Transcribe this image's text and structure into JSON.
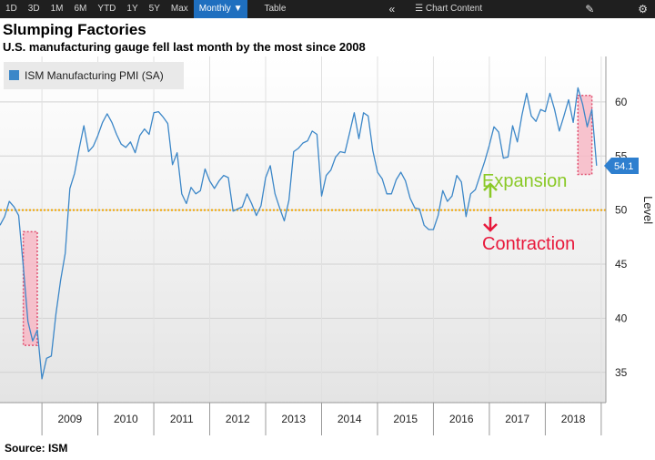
{
  "toolbar": {
    "ranges": [
      "1D",
      "3D",
      "1M",
      "6M",
      "YTD",
      "1Y",
      "5Y",
      "Max"
    ],
    "frequency": "Monthly ▼",
    "table_label": "Table",
    "collapse_icon": "double-chevron-left-icon",
    "chart_content_label": "Chart Content",
    "edit_icon": "edit-icon",
    "settings_icon": "gear-icon"
  },
  "title": "Slumping Factories",
  "subtitle": "U.S. manufacturing gauge fell last month by the most since 2008",
  "source": "Source: ISM",
  "colors": {
    "line": "#3c87c8",
    "threshold": "#f0a500",
    "expansion": "#8ac926",
    "contraction": "#e8193c",
    "highlight_fill": "#f7b8c6",
    "highlight_border": "#e05070",
    "plot_bg_top": "#ffffff",
    "plot_bg_bottom": "#e4e4e4",
    "last_value_bg": "#2e7fcf"
  },
  "chart_data": {
    "type": "line",
    "title": "Slumping Factories",
    "subtitle": "U.S. manufacturing gauge fell last month by the most since 2008",
    "ylabel": "Level",
    "ylim": [
      32.2,
      64.2
    ],
    "y_ticks": [
      35,
      40,
      45,
      50,
      55,
      60
    ],
    "xlim": [
      "2008-04",
      "2019-02"
    ],
    "x_ticks": [
      "2009",
      "2010",
      "2011",
      "2012",
      "2013",
      "2014",
      "2015",
      "2016",
      "2017",
      "2018"
    ],
    "grid": true,
    "legend": {
      "position": "top-left",
      "label": "ISM Manufacturing PMI (SA)"
    },
    "threshold": 50,
    "last_value_label": "54.1",
    "annotations": [
      "Expansion",
      "Contraction"
    ],
    "highlight_ranges": [
      {
        "x": [
          "2008-09",
          "2008-12"
        ],
        "y": [
          37.5,
          48
        ]
      },
      {
        "x": [
          "2018-08",
          "2018-11"
        ],
        "y": [
          53.3,
          60.6
        ]
      }
    ],
    "series": [
      {
        "name": "ISM Manufacturing PMI (SA)",
        "x": [
          "2008-04",
          "2008-05",
          "2008-06",
          "2008-07",
          "2008-08",
          "2008-09",
          "2008-10",
          "2008-11",
          "2008-12",
          "2009-01",
          "2009-02",
          "2009-03",
          "2009-04",
          "2009-05",
          "2009-06",
          "2009-07",
          "2009-08",
          "2009-09",
          "2009-10",
          "2009-11",
          "2009-12",
          "2010-01",
          "2010-02",
          "2010-03",
          "2010-04",
          "2010-05",
          "2010-06",
          "2010-07",
          "2010-08",
          "2010-09",
          "2010-10",
          "2010-11",
          "2010-12",
          "2011-01",
          "2011-02",
          "2011-03",
          "2011-04",
          "2011-05",
          "2011-06",
          "2011-07",
          "2011-08",
          "2011-09",
          "2011-10",
          "2011-11",
          "2011-12",
          "2012-01",
          "2012-02",
          "2012-03",
          "2012-04",
          "2012-05",
          "2012-06",
          "2012-07",
          "2012-08",
          "2012-09",
          "2012-10",
          "2012-11",
          "2012-12",
          "2013-01",
          "2013-02",
          "2013-03",
          "2013-04",
          "2013-05",
          "2013-06",
          "2013-07",
          "2013-08",
          "2013-09",
          "2013-10",
          "2013-11",
          "2013-12",
          "2014-01",
          "2014-02",
          "2014-03",
          "2014-04",
          "2014-05",
          "2014-06",
          "2014-07",
          "2014-08",
          "2014-09",
          "2014-10",
          "2014-11",
          "2014-12",
          "2015-01",
          "2015-02",
          "2015-03",
          "2015-04",
          "2015-05",
          "2015-06",
          "2015-07",
          "2015-08",
          "2015-09",
          "2015-10",
          "2015-11",
          "2015-12",
          "2016-01",
          "2016-02",
          "2016-03",
          "2016-04",
          "2016-05",
          "2016-06",
          "2016-07",
          "2016-08",
          "2016-09",
          "2016-10",
          "2016-11",
          "2016-12",
          "2017-01",
          "2017-02",
          "2017-03",
          "2017-04",
          "2017-05",
          "2017-06",
          "2017-07",
          "2017-08",
          "2017-09",
          "2017-10",
          "2017-11",
          "2017-12",
          "2018-01",
          "2018-02",
          "2018-03",
          "2018-04",
          "2018-05",
          "2018-06",
          "2018-07",
          "2018-08",
          "2018-09",
          "2018-10",
          "2018-11",
          "2018-12"
        ],
        "values": [
          48.6,
          49.4,
          50.8,
          50.3,
          49.5,
          44.8,
          39.7,
          37.9,
          38.9,
          34.4,
          36.3,
          36.5,
          40.4,
          43.5,
          46.0,
          52.0,
          53.4,
          55.7,
          57.8,
          55.4,
          55.9,
          56.9,
          58.1,
          58.9,
          58.1,
          57.0,
          56.1,
          55.8,
          56.3,
          55.3,
          56.9,
          57.5,
          57.0,
          59.0,
          59.1,
          58.6,
          58.0,
          54.2,
          55.3,
          51.5,
          50.6,
          52.1,
          51.5,
          51.8,
          53.8,
          52.7,
          52.0,
          52.7,
          53.2,
          53.0,
          49.9,
          50.1,
          50.3,
          51.5,
          50.6,
          49.5,
          50.4,
          53.0,
          54.1,
          51.5,
          50.2,
          49.0,
          50.9,
          55.4,
          55.7,
          56.2,
          56.4,
          57.3,
          57.0,
          51.3,
          53.2,
          53.7,
          54.9,
          55.4,
          55.3,
          57.1,
          59.0,
          56.6,
          59.0,
          58.7,
          55.5,
          53.5,
          52.9,
          51.5,
          51.5,
          52.8,
          53.5,
          52.7,
          51.1,
          50.2,
          50.1,
          48.6,
          48.2,
          48.2,
          49.5,
          51.8,
          50.8,
          51.3,
          53.2,
          52.6,
          49.4,
          51.5,
          51.9,
          53.2,
          54.5,
          56.0,
          57.7,
          57.2,
          54.8,
          54.9,
          57.8,
          56.3,
          58.8,
          60.8,
          58.7,
          58.2,
          59.3,
          59.1,
          60.8,
          59.3,
          57.3,
          58.7,
          60.2,
          58.1,
          61.3,
          59.8,
          57.7,
          59.3,
          54.1
        ]
      }
    ]
  }
}
